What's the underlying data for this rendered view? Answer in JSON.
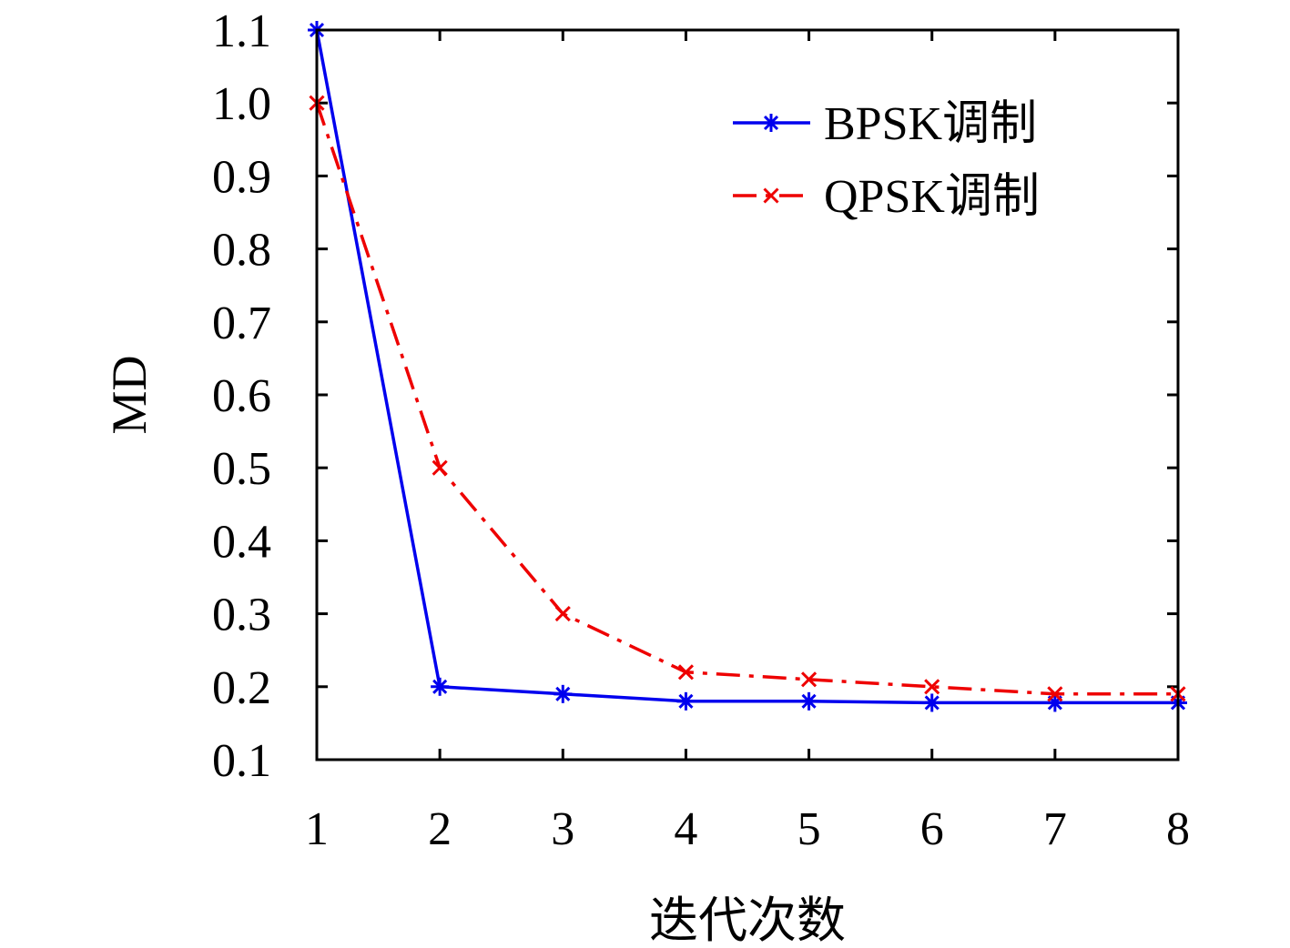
{
  "chart_data": {
    "type": "line",
    "title": "",
    "xlabel": "迭代次数",
    "ylabel": "MD",
    "x": [
      1,
      2,
      3,
      4,
      5,
      6,
      7,
      8
    ],
    "xlim": [
      1,
      8
    ],
    "ylim": [
      0.1,
      1.1
    ],
    "xticks": [
      "1",
      "2",
      "3",
      "4",
      "5",
      "6",
      "7",
      "8"
    ],
    "yticks": [
      "0.1",
      "0.2",
      "0.3",
      "0.4",
      "0.5",
      "0.6",
      "0.7",
      "0.8",
      "0.9",
      "1.0",
      "1.1"
    ],
    "grid": false,
    "legend_position": "top-right",
    "series": [
      {
        "name": "BPSK调制",
        "values": [
          1.1,
          0.2,
          0.19,
          0.18,
          0.18,
          0.178,
          0.178,
          0.178
        ],
        "color": "#0000ee",
        "line_style": "solid",
        "marker": "asterisk"
      },
      {
        "name": "QPSK调制",
        "values": [
          1.0,
          0.5,
          0.3,
          0.22,
          0.21,
          0.2,
          0.19,
          0.19
        ],
        "color": "#ee0000",
        "line_style": "dash-dot",
        "marker": "x"
      }
    ]
  }
}
